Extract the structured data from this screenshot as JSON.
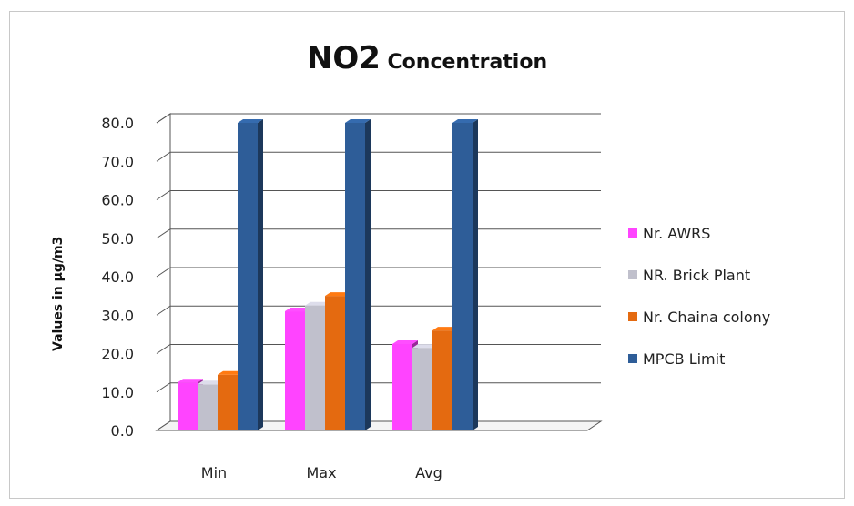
{
  "chart_data": {
    "type": "bar",
    "title_main": "NO2",
    "title_rest": " Concentration",
    "xlabel": "",
    "ylabel": "Values in µg/m3",
    "ylim": [
      0,
      80
    ],
    "yticks": [
      "0.0",
      "10.0",
      "20.0",
      "30.0",
      "40.0",
      "50.0",
      "60.0",
      "70.0",
      "80.0"
    ],
    "categories": [
      "Min",
      "Max",
      "Avg"
    ],
    "series": [
      {
        "name": "Nr. AWRS",
        "values": [
          12.5,
          31.0,
          22.5
        ],
        "color": "#ff44ff"
      },
      {
        "name": "NR. Brick Plant",
        "values": [
          12.0,
          32.5,
          21.5
        ],
        "color": "#c0c0cc"
      },
      {
        "name": "Nr. Chaina colony",
        "values": [
          14.5,
          35.0,
          26.0
        ],
        "color": "#e46a10"
      },
      {
        "name": "MPCB Limit",
        "values": [
          80,
          80,
          80
        ],
        "color": "#2e5d98"
      }
    ],
    "grid": true,
    "legend": "right"
  }
}
